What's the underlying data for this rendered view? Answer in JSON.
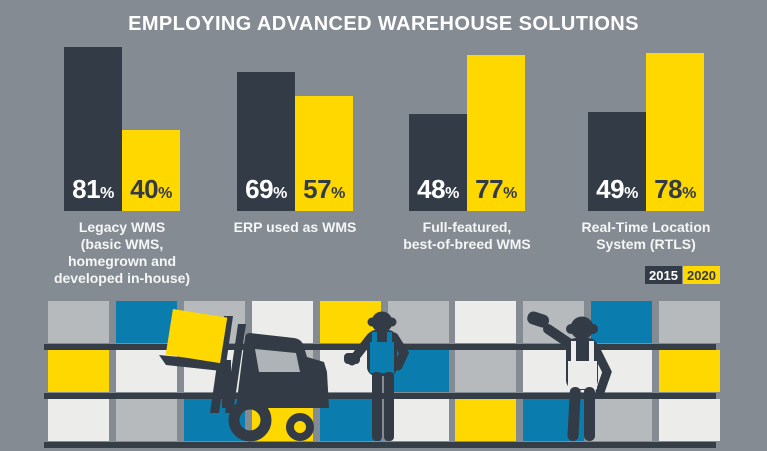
{
  "title": "EMPLOYING ADVANCED WAREHOUSE SOLUTIONS",
  "colors": {
    "background": "#848B92",
    "dark": "#333C46",
    "yellow": "#FFD800",
    "blue": "#0A7CAE",
    "light_gray": "#B7BABD",
    "off_white": "#ECEDEB",
    "window_gray": "#AEB3B7",
    "shelf_bar": "#353E47",
    "label_text": "#F5F6F6"
  },
  "chart_data": {
    "type": "bar",
    "title": "EMPLOYING ADVANCED WAREHOUSE SOLUTIONS",
    "unit": "%",
    "ylim": [
      0,
      100
    ],
    "grid": false,
    "legend_position": "bottom-right",
    "categories": [
      "Legacy WMS (basic WMS, homegrown and developed in-house)",
      "ERP used as WMS",
      "Full-featured, best-of-breed WMS",
      "Real-Time Location System (RTLS)"
    ],
    "series": [
      {
        "name": "2015",
        "color": "#333C46",
        "text_color": "#FFFFFF",
        "values": [
          81,
          69,
          48,
          49
        ]
      },
      {
        "name": "2020",
        "color": "#FFD800",
        "text_color": "#333C46",
        "values": [
          40,
          57,
          77,
          78
        ]
      }
    ],
    "groups": [
      {
        "label_lines": [
          "Legacy WMS",
          "(basic WMS,",
          "homegrown and",
          "developed in-house)"
        ]
      },
      {
        "label_lines": [
          "ERP used as WMS"
        ]
      },
      {
        "label_lines": [
          "Full-featured,",
          "best-of-breed WMS"
        ]
      },
      {
        "label_lines": [
          "Real-Time Location",
          "System (RTLS)"
        ]
      }
    ],
    "legend": [
      {
        "label": "2015",
        "color": "#333C46",
        "text_color": "#FFFFFF"
      },
      {
        "label": "2020",
        "color": "#FFD800",
        "text_color": "#333C46"
      }
    ]
  },
  "illustration": {
    "description": "warehouse shelves with crates, forklift lifting a crate, two workers",
    "shelf_rows": [
      [
        "gray",
        "blue",
        "gray",
        "white",
        "yellow",
        "gray",
        "white",
        "gray",
        "blue",
        "gray"
      ],
      [
        "yellow",
        "white",
        "white",
        "gray",
        "white",
        "blue",
        "gray",
        "white",
        "white",
        "yellow"
      ],
      [
        "white",
        "gray",
        "blue",
        "yellow",
        "blue",
        "white",
        "yellow",
        "blue",
        "gray",
        "white"
      ]
    ],
    "elements": [
      "forklift",
      "lifted-crate",
      "worker-with-scanner",
      "worker-pointing"
    ]
  }
}
